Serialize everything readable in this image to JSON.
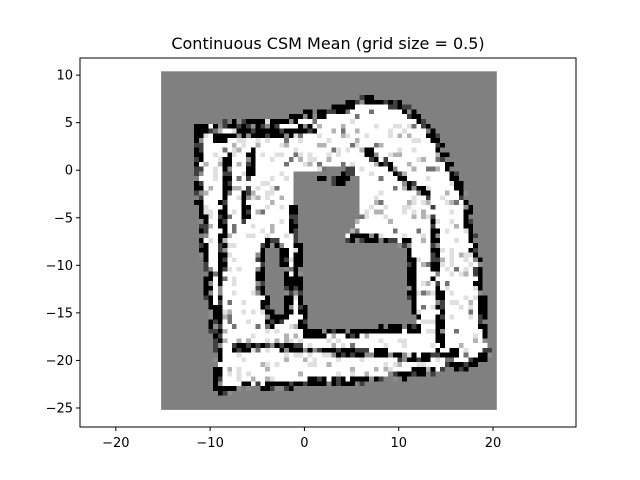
{
  "chart_data": {
    "type": "heatmap",
    "title": "Continuous CSM Mean (grid size = 0.5)",
    "xlabel": "",
    "ylabel": "",
    "xlim": [
      -23.8,
      28.8
    ],
    "ylim": [
      -27.0,
      11.8
    ],
    "x_ticks": [
      -20,
      -10,
      0,
      10,
      20
    ],
    "y_ticks": [
      10,
      5,
      0,
      -5,
      -10,
      -15,
      -20,
      -25
    ],
    "x_tick_labels": [
      "−20",
      "−10",
      "0",
      "10",
      "20"
    ],
    "y_tick_labels": [
      "10",
      "5",
      "0",
      "−5",
      "−10",
      "−15",
      "−20",
      "−25"
    ],
    "grid_resolution": 0.5,
    "grid_extent": {
      "x": [
        -15.2,
        20.4
      ],
      "y": [
        -25.2,
        10.4
      ]
    },
    "unknown_value": 0.5,
    "colormap": "gray_r",
    "grid": false,
    "legend": "none",
    "colors": {
      "free": "#ffffff",
      "occupied": "#000000",
      "unknown": "#808080",
      "frame": "#000000"
    },
    "regions": {
      "free_area": [
        [
          -11.3,
          4.5
        ],
        [
          -7.0,
          5.0
        ],
        [
          0.5,
          5.8
        ],
        [
          6.0,
          7.3
        ],
        [
          10.0,
          7.0
        ],
        [
          14.0,
          3.2
        ],
        [
          17.0,
          -3.0
        ],
        [
          18.5,
          -12.0
        ],
        [
          19.2,
          -19.5
        ],
        [
          17.0,
          -20.5
        ],
        [
          9.0,
          -21.8
        ],
        [
          0.0,
          -22.3
        ],
        [
          -9.0,
          -23.0
        ],
        [
          -9.3,
          -20.0
        ],
        [
          -9.8,
          -15.0
        ],
        [
          -10.5,
          -10.0
        ],
        [
          -11.2,
          -3.0
        ]
      ],
      "unknown_interior": [
        [
          -1.0,
          -0.3
        ],
        [
          5.0,
          0.5
        ],
        [
          6.0,
          -1.2
        ],
        [
          5.5,
          -5.3
        ],
        [
          4.3,
          -6.8
        ],
        [
          4.8,
          -7.0
        ],
        [
          11.0,
          -7.5
        ],
        [
          11.5,
          -13.0
        ],
        [
          11.8,
          -16.5
        ],
        [
          0.0,
          -17.2
        ],
        [
          -0.6,
          -10.0
        ],
        [
          -1.2,
          -4.0
        ]
      ],
      "unknown_hole": [
        [
          -4.2,
          -7.5
        ],
        [
          -2.2,
          -8.0
        ],
        [
          -1.8,
          -12.0
        ],
        [
          -1.8,
          -15.0
        ],
        [
          -3.5,
          -16.0
        ],
        [
          -4.5,
          -13.0
        ],
        [
          -4.6,
          -9.0
        ]
      ],
      "wall_lines": [
        [
          [
            -11.3,
            4.5
          ],
          [
            -9.5,
            4.6
          ],
          [
            -7.0,
            5.0
          ],
          [
            -3.0,
            5.0
          ],
          [
            0.5,
            5.8
          ],
          [
            2.0,
            6.0
          ],
          [
            4.0,
            6.6
          ],
          [
            6.0,
            7.3
          ],
          [
            10.0,
            7.0
          ]
        ],
        [
          [
            10.0,
            7.0
          ],
          [
            12.5,
            5.0
          ],
          [
            14.0,
            3.2
          ],
          [
            15.5,
            0.0
          ],
          [
            17.0,
            -3.0
          ]
        ],
        [
          [
            17.0,
            -3.0
          ],
          [
            17.5,
            -6.0
          ],
          [
            18.3,
            -10.0
          ],
          [
            18.8,
            -15.0
          ],
          [
            19.2,
            -19.5
          ]
        ],
        [
          [
            19.2,
            -19.5
          ],
          [
            17.0,
            -20.5
          ],
          [
            13.0,
            -21.0
          ],
          [
            9.0,
            -21.8
          ],
          [
            4.0,
            -22.0
          ],
          [
            0.0,
            -22.3
          ],
          [
            -4.0,
            -22.6
          ],
          [
            -9.0,
            -23.0
          ]
        ],
        [
          [
            -9.0,
            -23.0
          ],
          [
            -9.2,
            -20.0
          ],
          [
            -9.6,
            -16.0
          ],
          [
            -10.2,
            -12.0
          ],
          [
            -10.8,
            -6.0
          ],
          [
            -11.2,
            -1.0
          ],
          [
            -11.3,
            4.5
          ]
        ],
        [
          [
            -1.2,
            -4.0
          ],
          [
            -0.8,
            -9.0
          ],
          [
            -0.5,
            -13.0
          ],
          [
            -0.2,
            -16.0
          ],
          [
            0.0,
            -17.2
          ]
        ],
        [
          [
            0.0,
            -17.2
          ],
          [
            4.0,
            -17.0
          ],
          [
            8.0,
            -16.8
          ],
          [
            11.8,
            -16.5
          ]
        ],
        [
          [
            4.8,
            -7.0
          ],
          [
            8.0,
            -7.3
          ],
          [
            11.0,
            -7.5
          ]
        ],
        [
          [
            11.0,
            -7.5
          ],
          [
            11.3,
            -11.0
          ],
          [
            11.6,
            -14.5
          ],
          [
            11.8,
            -16.5
          ]
        ],
        [
          [
            -4.2,
            -7.5
          ],
          [
            -2.2,
            -8.0
          ],
          [
            -1.8,
            -12.0
          ],
          [
            -1.8,
            -15.0
          ],
          [
            -3.5,
            -16.0
          ],
          [
            -4.5,
            -13.0
          ],
          [
            -4.6,
            -9.0
          ],
          [
            -4.2,
            -7.5
          ]
        ],
        [
          [
            -8.0,
            1.5
          ],
          [
            -8.5,
            -3.0
          ],
          [
            -8.8,
            -8.0
          ],
          [
            -9.0,
            -13.0
          ],
          [
            -8.9,
            -18.0
          ]
        ],
        [
          [
            -5.5,
            2.0
          ],
          [
            -6.0,
            -2.0
          ],
          [
            -6.2,
            -5.0
          ]
        ],
        [
          [
            -7.5,
            -18.5
          ],
          [
            -4.0,
            -18.3
          ],
          [
            0.0,
            -18.8
          ],
          [
            6.0,
            -19.0
          ],
          [
            12.0,
            -19.6
          ],
          [
            16.0,
            -19.0
          ]
        ],
        [
          [
            13.5,
            -4.0
          ],
          [
            13.8,
            -9.0
          ],
          [
            14.2,
            -14.0
          ],
          [
            14.5,
            -18.0
          ]
        ],
        [
          [
            1.5,
            -0.8
          ],
          [
            4.0,
            -1.0
          ],
          [
            5.0,
            0.2
          ]
        ],
        [
          [
            -9.5,
            3.5
          ],
          [
            -6.0,
            3.8
          ],
          [
            -2.0,
            4.0
          ],
          [
            1.0,
            4.5
          ]
        ],
        [
          [
            6.5,
            2.0
          ],
          [
            9.0,
            0.5
          ],
          [
            11.0,
            -1.5
          ],
          [
            13.0,
            -2.5
          ]
        ]
      ]
    }
  }
}
